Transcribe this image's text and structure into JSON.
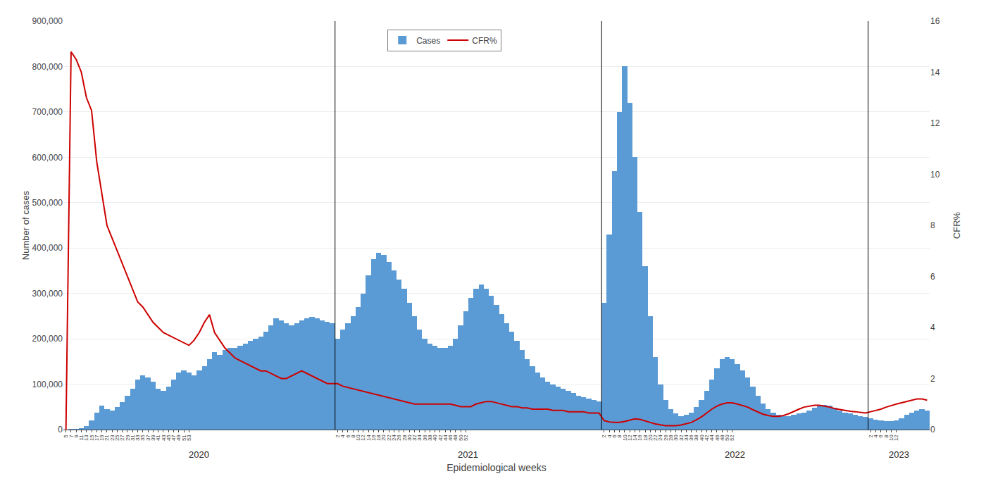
{
  "chart_data": {
    "type": "bar",
    "xlabel": "Epidemiological weeks",
    "ylabel": "Number of cases",
    "y2label": "CFR%",
    "categories": [
      "5",
      "7",
      "9",
      "11",
      "13",
      "15",
      "17",
      "19",
      "21",
      "23",
      "25",
      "27",
      "29",
      "31",
      "33",
      "35",
      "37",
      "39",
      "41",
      "43",
      "45",
      "47",
      "49",
      "51",
      "53",
      null,
      null,
      null,
      null,
      null,
      null,
      null,
      null,
      null,
      null,
      null,
      null,
      null,
      null,
      null,
      null,
      null,
      null,
      null,
      null,
      null,
      null,
      null,
      null,
      null,
      null,
      null,
      null,
      "2",
      "4",
      "6",
      "8",
      "10",
      "12",
      "14",
      "16",
      "18",
      "20",
      "22",
      "24",
      "26",
      "28",
      "30",
      "32",
      "34",
      "36",
      "38",
      "40",
      "42",
      "44",
      "46",
      "48",
      "50",
      "52",
      null,
      null,
      null,
      null,
      null,
      null,
      null,
      null,
      null,
      null,
      null,
      null,
      null,
      null,
      null,
      null,
      null,
      null,
      null,
      null,
      null,
      null,
      null,
      null,
      null,
      null,
      "2",
      "4",
      "6",
      "8",
      "10",
      "12",
      "14",
      "16",
      "18",
      "20",
      "22",
      "24",
      "26",
      "28",
      "30",
      "32",
      "34",
      "36",
      "38",
      "40",
      "42",
      "44",
      "46",
      "48",
      "50",
      "52",
      null,
      null,
      null,
      null,
      null,
      null,
      null,
      null,
      null,
      null,
      null,
      null,
      null,
      null,
      null,
      null,
      null,
      null,
      null,
      null,
      null,
      null,
      null,
      null,
      null,
      null,
      "2",
      "4",
      "6",
      "8",
      "10",
      "12",
      null,
      null,
      null,
      null,
      null,
      null
    ],
    "series": [
      {
        "name": "Cases",
        "type": "bar",
        "color": "#5B9BD5",
        "values": [
          0,
          100,
          500,
          2000,
          8000,
          20000,
          38000,
          52000,
          45000,
          42000,
          50000,
          60000,
          75000,
          90000,
          110000,
          120000,
          115000,
          105000,
          90000,
          85000,
          95000,
          110000,
          125000,
          130000,
          125000,
          120000,
          130000,
          140000,
          155000,
          170000,
          165000,
          175000,
          180000,
          180000,
          185000,
          190000,
          195000,
          200000,
          205000,
          215000,
          230000,
          245000,
          240000,
          235000,
          230000,
          235000,
          240000,
          245000,
          248000,
          245000,
          240000,
          238000,
          235000,
          200000,
          220000,
          235000,
          250000,
          270000,
          300000,
          340000,
          375000,
          390000,
          385000,
          370000,
          350000,
          330000,
          310000,
          280000,
          250000,
          220000,
          200000,
          190000,
          185000,
          180000,
          180000,
          185000,
          200000,
          230000,
          260000,
          290000,
          310000,
          320000,
          310000,
          295000,
          275000,
          255000,
          235000,
          215000,
          195000,
          175000,
          155000,
          140000,
          125000,
          115000,
          105000,
          100000,
          95000,
          90000,
          85000,
          80000,
          75000,
          72000,
          68000,
          65000,
          62000,
          280000,
          430000,
          570000,
          700000,
          800000,
          720000,
          600000,
          480000,
          360000,
          250000,
          160000,
          100000,
          65000,
          45000,
          35000,
          30000,
          32000,
          38000,
          50000,
          65000,
          85000,
          110000,
          135000,
          155000,
          160000,
          155000,
          145000,
          130000,
          115000,
          95000,
          75000,
          58000,
          45000,
          38000,
          33000,
          30000,
          30000,
          32000,
          35000,
          38000,
          42000,
          48000,
          52000,
          55000,
          52000,
          48000,
          42000,
          38000,
          35000,
          32000,
          30000,
          28000,
          25000,
          22000,
          20000,
          18000,
          18000,
          20000,
          25000,
          32000,
          38000,
          42000,
          45000,
          42000
        ]
      },
      {
        "name": "CFR%",
        "type": "line",
        "axis": "y2",
        "color": "#CC0000",
        "values": [
          0,
          14.8,
          14.5,
          14.0,
          13.0,
          12.5,
          10.5,
          9.2,
          8.0,
          7.5,
          7.0,
          6.5,
          6.0,
          5.5,
          5.0,
          4.8,
          4.5,
          4.2,
          4.0,
          3.8,
          3.7,
          3.6,
          3.5,
          3.4,
          3.3,
          3.5,
          3.8,
          4.2,
          4.5,
          3.8,
          3.5,
          3.2,
          3.0,
          2.8,
          2.7,
          2.6,
          2.5,
          2.4,
          2.3,
          2.3,
          2.2,
          2.1,
          2.0,
          2.0,
          2.1,
          2.2,
          2.3,
          2.2,
          2.1,
          2.0,
          1.9,
          1.8,
          1.8,
          1.8,
          1.7,
          1.65,
          1.6,
          1.55,
          1.5,
          1.45,
          1.4,
          1.35,
          1.3,
          1.25,
          1.2,
          1.15,
          1.1,
          1.05,
          1.0,
          1.0,
          1.0,
          1.0,
          1.0,
          1.0,
          1.0,
          1.0,
          0.95,
          0.9,
          0.9,
          0.9,
          1.0,
          1.05,
          1.1,
          1.1,
          1.05,
          1.0,
          0.95,
          0.9,
          0.9,
          0.85,
          0.85,
          0.8,
          0.8,
          0.8,
          0.8,
          0.75,
          0.75,
          0.75,
          0.7,
          0.7,
          0.7,
          0.7,
          0.65,
          0.65,
          0.65,
          0.35,
          0.3,
          0.28,
          0.28,
          0.32,
          0.38,
          0.42,
          0.4,
          0.35,
          0.28,
          0.22,
          0.18,
          0.15,
          0.15,
          0.15,
          0.18,
          0.22,
          0.28,
          0.38,
          0.5,
          0.65,
          0.8,
          0.92,
          1.0,
          1.05,
          1.05,
          1.0,
          0.95,
          0.88,
          0.78,
          0.68,
          0.6,
          0.55,
          0.52,
          0.52,
          0.55,
          0.62,
          0.72,
          0.8,
          0.88,
          0.92,
          0.95,
          0.95,
          0.92,
          0.88,
          0.82,
          0.78,
          0.75,
          0.72,
          0.7,
          0.68,
          0.65,
          0.7,
          0.75,
          0.8,
          0.88,
          0.95,
          1.0,
          1.05,
          1.1,
          1.15,
          1.2,
          1.2,
          1.15
        ]
      }
    ],
    "annotations": [
      {
        "text": "2020",
        "start": 0,
        "end": 52
      },
      {
        "text": "2021",
        "start": 53,
        "end": 104
      },
      {
        "text": "2022",
        "start": 105,
        "end": 156
      },
      {
        "text": "2023",
        "start": 157,
        "end": 168
      }
    ],
    "ylim": [
      0,
      900000
    ],
    "yticks": [
      0,
      {
        "value": 100000,
        "label": "100,000"
      },
      {
        "value": 200000,
        "label": "200,000"
      },
      {
        "value": 300000,
        "label": "300,000"
      },
      {
        "value": 400000,
        "label": "400,000"
      },
      {
        "value": 500000,
        "label": "500,000"
      },
      {
        "value": 600000,
        "label": "600,000"
      },
      {
        "value": 700000,
        "label": "700,000"
      },
      {
        "value": 800000,
        "label": "800,000"
      },
      {
        "value": 900000,
        "label": "900,000"
      }
    ],
    "y2lim": [
      0,
      16
    ],
    "y2ticks": [
      0,
      2,
      4,
      6,
      8,
      10,
      12,
      14,
      16
    ],
    "grid": true,
    "legend": "upper center"
  }
}
